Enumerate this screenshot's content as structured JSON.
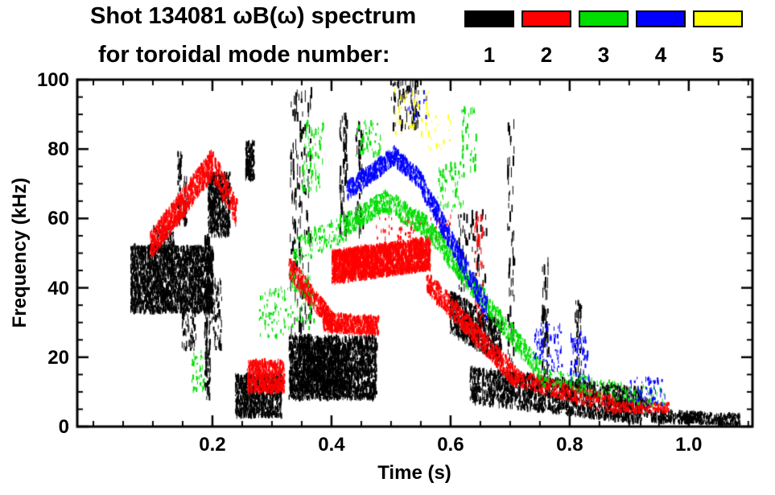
{
  "title": {
    "line1": "Shot 134081 ωB(ω) spectrum",
    "line2": "for toroidal mode number:"
  },
  "legend": {
    "entries": [
      {
        "label": "1",
        "color": "#000000"
      },
      {
        "label": "2",
        "color": "#ff0000"
      },
      {
        "label": "3",
        "color": "#00dd00"
      },
      {
        "label": "4",
        "color": "#0000ff"
      },
      {
        "label": "5",
        "color": "#ffff00"
      }
    ]
  },
  "chart_data": {
    "type": "scatter",
    "title": "Shot 134081 ωB(ω) spectrum for toroidal mode number 1-5",
    "xlabel": "Time (s)",
    "ylabel": "Frequency (kHz)",
    "xlim": [
      -0.027,
      1.107
    ],
    "ylim": [
      0,
      100
    ],
    "xticks": [
      0.2,
      0.4,
      0.6,
      0.8,
      1.0
    ],
    "yticks": [
      0,
      20,
      40,
      60,
      80,
      100
    ],
    "xminor": 0.05,
    "yminor": 5,
    "grid": false,
    "legend_position": "top-right",
    "series": [
      {
        "name": "1",
        "color": "#000000",
        "clusters": [
          {
            "style": "box",
            "t": [
              0.062,
              0.2
            ],
            "f": [
              33,
              52
            ],
            "n": 2400,
            "dash": [
              2,
              8
            ]
          },
          {
            "style": "box",
            "t": [
              0.1,
              0.135
            ],
            "f": [
              50,
              58
            ],
            "n": 120,
            "dash": [
              2,
              6
            ]
          },
          {
            "style": "box",
            "t": [
              0.141,
              0.147
            ],
            "f": [
              58,
              79
            ],
            "n": 45,
            "dash": [
              4,
              10
            ]
          },
          {
            "style": "box",
            "t": [
              0.15,
              0.156
            ],
            "f": [
              58,
              72
            ],
            "n": 30,
            "dash": [
              4,
              10
            ]
          },
          {
            "style": "box",
            "t": [
              0.148,
              0.172
            ],
            "f": [
              22,
              34
            ],
            "n": 70,
            "dash": [
              3,
              9
            ]
          },
          {
            "style": "box",
            "t": [
              0.186,
              0.196
            ],
            "f": [
              8,
              55
            ],
            "n": 130,
            "dash": [
              4,
              12
            ]
          },
          {
            "style": "box",
            "t": [
              0.192,
              0.228
            ],
            "f": [
              55,
              73
            ],
            "n": 520,
            "dash": [
              2,
              8
            ]
          },
          {
            "style": "box",
            "t": [
              0.198,
              0.215
            ],
            "f": [
              22,
              42
            ],
            "n": 60,
            "dash": [
              3,
              10
            ]
          },
          {
            "style": "box",
            "t": [
              0.255,
              0.269
            ],
            "f": [
              71,
              82
            ],
            "n": 150,
            "dash": [
              2,
              8
            ]
          },
          {
            "style": "box",
            "t": [
              0.238,
              0.315
            ],
            "f": [
              3,
              15
            ],
            "n": 900,
            "dash": [
              2,
              8
            ]
          },
          {
            "style": "box",
            "t": [
              0.33,
              0.365
            ],
            "f": [
              25,
              97
            ],
            "n": 150,
            "dash": [
              5,
              16
            ]
          },
          {
            "style": "box",
            "t": [
              0.328,
              0.475
            ],
            "f": [
              8,
              26
            ],
            "n": 2200,
            "dash": [
              2,
              8
            ]
          },
          {
            "style": "box",
            "t": [
              0.34,
              0.43
            ],
            "f": [
              10,
              24
            ],
            "n": 700,
            "dash": [
              2,
              8
            ]
          },
          {
            "style": "box",
            "t": [
              0.413,
              0.425
            ],
            "f": [
              55,
              90
            ],
            "n": 60,
            "dash": [
              5,
              14
            ]
          },
          {
            "style": "box",
            "t": [
              0.44,
              0.452
            ],
            "f": [
              55,
              88
            ],
            "n": 40,
            "dash": [
              5,
              14
            ]
          },
          {
            "style": "box",
            "t": [
              0.5,
              0.548
            ],
            "f": [
              86,
              100
            ],
            "n": 70,
            "dash": [
              4,
              12
            ]
          },
          {
            "style": "trace",
            "t": [
              0.598,
              0.685
            ],
            "f": [
              33,
              24
            ],
            "spread": 6,
            "n": 750,
            "dash": [
              2,
              8
            ]
          },
          {
            "style": "box",
            "t": [
              0.612,
              0.66
            ],
            "f": [
              38,
              62
            ],
            "n": 80,
            "dash": [
              4,
              12
            ]
          },
          {
            "style": "trace",
            "t": [
              0.632,
              0.92
            ],
            "f": [
              12,
              6
            ],
            "spread": 5,
            "n": 1700,
            "dash": [
              2,
              8
            ]
          },
          {
            "style": "box",
            "t": [
              0.695,
              0.706
            ],
            "f": [
              12,
              88
            ],
            "n": 70,
            "dash": [
              5,
              14
            ]
          },
          {
            "style": "box",
            "t": [
              0.752,
              0.764
            ],
            "f": [
              12,
              48
            ],
            "n": 60,
            "dash": [
              5,
              14
            ]
          },
          {
            "style": "box",
            "t": [
              0.808,
              0.819
            ],
            "f": [
              10,
              36
            ],
            "n": 50,
            "dash": [
              4,
              12
            ]
          },
          {
            "style": "box",
            "t": [
              0.86,
              0.935
            ],
            "f": [
              3,
              8
            ],
            "n": 180,
            "dash": [
              2,
              6
            ]
          },
          {
            "style": "trace",
            "t": [
              0.935,
              1.085
            ],
            "f": [
              3,
              2
            ],
            "spread": 1.6,
            "n": 520,
            "dash": [
              2,
              6
            ]
          }
        ]
      },
      {
        "name": "2",
        "color": "#ff0000",
        "clusters": [
          {
            "style": "trace",
            "t": [
              0.095,
              0.2
            ],
            "f": [
              52,
              76
            ],
            "spread": 4,
            "n": 750,
            "dash": [
              2,
              8
            ]
          },
          {
            "style": "trace",
            "t": [
              0.203,
              0.24
            ],
            "f": [
              74,
              62
            ],
            "spread": 4,
            "n": 170,
            "dash": [
              2,
              8
            ]
          },
          {
            "style": "box",
            "t": [
              0.258,
              0.32
            ],
            "f": [
              10,
              19
            ],
            "n": 550,
            "dash": [
              2,
              8
            ]
          },
          {
            "style": "trace",
            "t": [
              0.328,
              0.4
            ],
            "f": [
              46,
              30
            ],
            "spread": 3,
            "n": 400,
            "dash": [
              2,
              7
            ]
          },
          {
            "style": "trace",
            "t": [
              0.385,
              0.478
            ],
            "f": [
              30,
              29
            ],
            "spread": 2.6,
            "n": 600,
            "dash": [
              2,
              7
            ]
          },
          {
            "style": "trace",
            "t": [
              0.4,
              0.565
            ],
            "f": [
              46,
              50
            ],
            "spread": 4.5,
            "n": 2300,
            "dash": [
              2,
              8
            ]
          },
          {
            "style": "box",
            "t": [
              0.47,
              0.6
            ],
            "f": [
              54,
              61
            ],
            "n": 80,
            "dash": [
              2,
              6
            ]
          },
          {
            "style": "trace",
            "t": [
              0.558,
              0.71
            ],
            "f": [
              42,
              14
            ],
            "spread": 3,
            "n": 700,
            "dash": [
              2,
              7
            ]
          },
          {
            "style": "box",
            "t": [
              0.64,
              0.654
            ],
            "f": [
              25,
              62
            ],
            "n": 50,
            "dash": [
              4,
              12
            ]
          },
          {
            "style": "trace",
            "t": [
              0.71,
              0.875
            ],
            "f": [
              14,
              6
            ],
            "spread": 2.5,
            "n": 430,
            "dash": [
              2,
              6
            ]
          },
          {
            "style": "box",
            "t": [
              0.875,
              0.965
            ],
            "f": [
              4,
              7
            ],
            "n": 230,
            "dash": [
              2,
              5
            ]
          }
        ]
      },
      {
        "name": "3",
        "color": "#00dd00",
        "clusters": [
          {
            "style": "box",
            "t": [
              0.163,
              0.186
            ],
            "f": [
              10,
              22
            ],
            "n": 40,
            "dash": [
              2,
              7
            ]
          },
          {
            "style": "box",
            "t": [
              0.278,
              0.322
            ],
            "f": [
              26,
              40
            ],
            "n": 70,
            "dash": [
              2,
              7
            ]
          },
          {
            "style": "box",
            "t": [
              0.322,
              0.372
            ],
            "f": [
              28,
              45
            ],
            "n": 60,
            "dash": [
              2,
              7
            ]
          },
          {
            "style": "trace",
            "t": [
              0.335,
              0.425
            ],
            "f": [
              50,
              58
            ],
            "spread": 4,
            "n": 130,
            "dash": [
              2,
              7
            ]
          },
          {
            "style": "box",
            "t": [
              0.35,
              0.388
            ],
            "f": [
              68,
              88
            ],
            "n": 70,
            "dash": [
              3,
              9
            ]
          },
          {
            "style": "trace",
            "t": [
              0.42,
              0.49
            ],
            "f": [
              58,
              65
            ],
            "spread": 3,
            "n": 280,
            "dash": [
              2,
              7
            ]
          },
          {
            "style": "trace",
            "t": [
              0.49,
              0.565
            ],
            "f": [
              65,
              57
            ],
            "spread": 3,
            "n": 240,
            "dash": [
              2,
              7
            ]
          },
          {
            "style": "trace",
            "t": [
              0.565,
              0.75
            ],
            "f": [
              56,
              16
            ],
            "spread": 3,
            "n": 600,
            "dash": [
              2,
              7
            ]
          },
          {
            "style": "box",
            "t": [
              0.44,
              0.482
            ],
            "f": [
              78,
              88
            ],
            "n": 50,
            "dash": [
              2,
              8
            ]
          },
          {
            "style": "box",
            "t": [
              0.578,
              0.622
            ],
            "f": [
              62,
              76
            ],
            "n": 60,
            "dash": [
              2,
              8
            ]
          },
          {
            "style": "box",
            "t": [
              0.618,
              0.642
            ],
            "f": [
              74,
              92
            ],
            "n": 35,
            "dash": [
              3,
              10
            ]
          },
          {
            "style": "trace",
            "t": [
              0.75,
              0.96
            ],
            "f": [
              14,
              8
            ],
            "spread": 2.6,
            "n": 180,
            "dash": [
              2,
              6
            ]
          }
        ]
      },
      {
        "name": "4",
        "color": "#0000ff",
        "clusters": [
          {
            "style": "trace",
            "t": [
              0.425,
              0.505
            ],
            "f": [
              68,
              78
            ],
            "spread": 2.5,
            "n": 380,
            "dash": [
              2,
              7
            ]
          },
          {
            "style": "trace",
            "t": [
              0.505,
              0.55
            ],
            "f": [
              78,
              71
            ],
            "spread": 2.5,
            "n": 210,
            "dash": [
              2,
              7
            ]
          },
          {
            "style": "trace",
            "t": [
              0.55,
              0.66
            ],
            "f": [
              70,
              34
            ],
            "spread": 3,
            "n": 480,
            "dash": [
              2,
              7
            ]
          },
          {
            "style": "box",
            "t": [
              0.52,
              0.56
            ],
            "f": [
              88,
              97
            ],
            "n": 25,
            "dash": [
              2,
              7
            ]
          },
          {
            "style": "box",
            "t": [
              0.74,
              0.786
            ],
            "f": [
              16,
              30
            ],
            "n": 80,
            "dash": [
              2,
              8
            ]
          },
          {
            "style": "box",
            "t": [
              0.8,
              0.832
            ],
            "f": [
              13,
              27
            ],
            "n": 60,
            "dash": [
              2,
              8
            ]
          },
          {
            "style": "box",
            "t": [
              0.9,
              0.96
            ],
            "f": [
              6,
              14
            ],
            "n": 60,
            "dash": [
              2,
              7
            ]
          }
        ]
      },
      {
        "name": "5",
        "color": "#ffff00",
        "clusters": [
          {
            "style": "box",
            "t": [
              0.505,
              0.565
            ],
            "f": [
              84,
              97
            ],
            "n": 45,
            "dash": [
              2,
              8
            ]
          },
          {
            "style": "box",
            "t": [
              0.56,
              0.6
            ],
            "f": [
              80,
              90
            ],
            "n": 18,
            "dash": [
              2,
              7
            ]
          }
        ]
      }
    ]
  }
}
